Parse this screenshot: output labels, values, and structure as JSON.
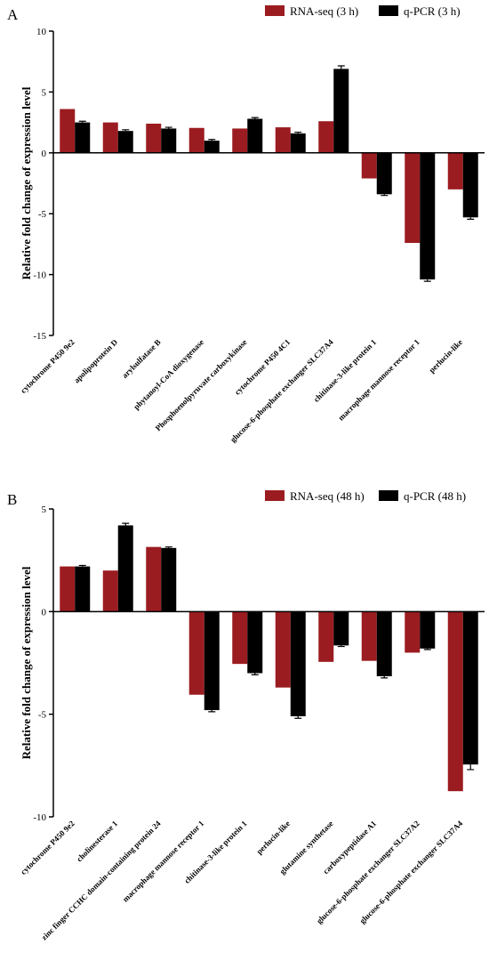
{
  "chart_data": [
    {
      "type": "bar",
      "panel_label": "A",
      "ylabel": "Relative fold change of expression level",
      "categories": [
        "cytochrome P450 9e2",
        "apolipoprotein D",
        "arylsulfatase B",
        "phytanoyl-CoA dioxygenase",
        "Phosphoenolpyruvate carboxykinase",
        "cytochrome P450 4C1",
        "glucose-6-phosphate exchanger SLC37A4",
        "chitinase-3-like protein 1",
        "macrophage mannose receptor 1",
        "perlucin-like"
      ],
      "series": [
        {
          "name": "RNA-seq (3 h)",
          "color": "#9b1c20",
          "values": [
            3.6,
            2.5,
            2.4,
            2.05,
            2.0,
            2.1,
            2.6,
            -2.1,
            -7.4,
            -3.0
          ]
        },
        {
          "name": "q-PCR (3 h)",
          "color": "#000000",
          "values": [
            2.5,
            1.8,
            2.0,
            1.0,
            2.8,
            1.6,
            6.9,
            -3.4,
            -10.4,
            -5.3
          ],
          "errors": [
            0.1,
            0.1,
            0.1,
            0.1,
            0.1,
            0.1,
            0.25,
            0.1,
            0.15,
            0.15
          ]
        }
      ],
      "ylim": [
        -15,
        10
      ],
      "yticks": [
        -15,
        -10,
        -5,
        0,
        5,
        10
      ]
    },
    {
      "type": "bar",
      "panel_label": "B",
      "ylabel": "Relative fold change of expression level",
      "categories": [
        "cytochrome P450 9e2",
        "cholinesterase 1",
        "zinc finger CCHC domain-containing protein 24",
        "macrophage mannose receptor 1",
        "chitinase-3-like protein 1",
        "perlucin-like",
        "glutamine synthetase",
        "carboxypeptidase A1",
        "glucose-6-phosphate exchanger SLC37A2",
        "glucose-6-phosphate exchanger SLC37A4"
      ],
      "series": [
        {
          "name": "RNA-seq (48 h)",
          "color": "#9b1c20",
          "values": [
            2.2,
            2.0,
            3.15,
            -4.05,
            -2.55,
            -3.7,
            -2.45,
            -2.4,
            -2.0,
            -8.75
          ]
        },
        {
          "name": "q-PCR (48 h)",
          "color": "#000000",
          "values": [
            2.2,
            4.2,
            3.1,
            -4.8,
            -3.0,
            -5.1,
            -1.65,
            -3.15,
            -1.8,
            -7.45
          ],
          "errors": [
            0.05,
            0.1,
            0.05,
            0.08,
            0.08,
            0.1,
            0.05,
            0.08,
            0.05,
            0.25
          ]
        }
      ],
      "ylim": [
        -10,
        5
      ],
      "yticks": [
        -10,
        -5,
        0,
        5
      ]
    }
  ]
}
